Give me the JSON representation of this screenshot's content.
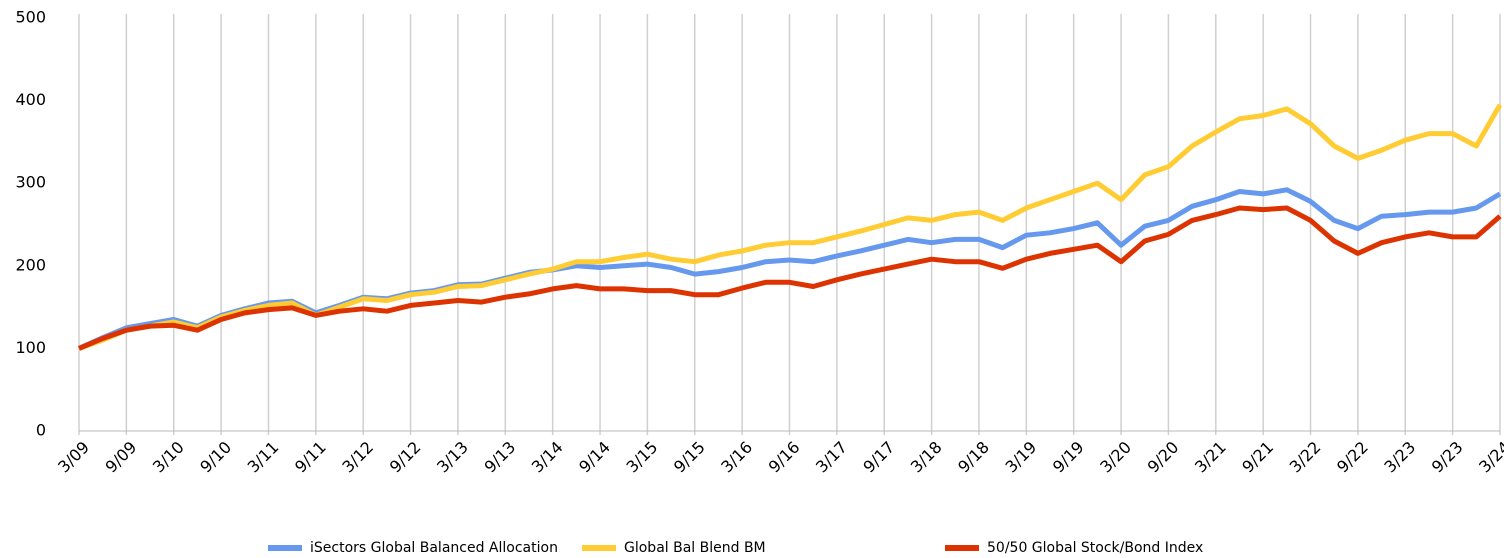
{
  "chart_data": {
    "type": "line",
    "categories": [
      "3/09",
      null,
      "9/09",
      null,
      "3/10",
      null,
      "9/10",
      null,
      "3/11",
      null,
      "9/11",
      null,
      "3/12",
      null,
      "9/12",
      null,
      "3/13",
      null,
      "9/13",
      null,
      "3/14",
      null,
      "9/14",
      null,
      "3/15",
      null,
      "9/15",
      null,
      "3/16",
      null,
      "9/16",
      null,
      "3/17",
      null,
      "9/17",
      null,
      "3/18",
      null,
      "9/18",
      null,
      "3/19",
      null,
      "9/19",
      null,
      "3/20",
      null,
      "9/20",
      null,
      "3/21",
      null,
      "9/21",
      null,
      "3/22",
      null,
      "9/22",
      null,
      "3/23",
      null,
      "9/23",
      null,
      "3/24"
    ],
    "series": [
      {
        "name": "iSectors Global Balanced Allocation",
        "color": "#6699ee",
        "values": [
          100,
          113,
          125,
          130,
          135,
          127,
          140,
          148,
          155,
          157,
          143,
          152,
          162,
          160,
          167,
          170,
          177,
          178,
          185,
          192,
          195,
          200,
          198,
          200,
          202,
          198,
          190,
          193,
          198,
          205,
          207,
          205,
          212,
          218,
          225,
          232,
          228,
          232,
          232,
          222,
          237,
          240,
          245,
          252,
          225,
          248,
          255,
          272,
          280,
          290,
          287,
          292,
          278,
          255,
          245,
          260,
          262,
          265,
          265,
          270,
          287
        ]
      },
      {
        "name": "Global Bal Blend BM",
        "color": "#ffcc33",
        "values": [
          100,
          110,
          122,
          127,
          132,
          125,
          138,
          146,
          152,
          155,
          140,
          150,
          160,
          158,
          165,
          168,
          175,
          176,
          183,
          190,
          196,
          205,
          205,
          210,
          214,
          208,
          205,
          213,
          218,
          225,
          228,
          228,
          235,
          242,
          250,
          258,
          255,
          262,
          265,
          255,
          270,
          280,
          290,
          300,
          280,
          310,
          320,
          345,
          362,
          378,
          382,
          390,
          372,
          345,
          330,
          340,
          352,
          360,
          360,
          345,
          395
        ]
      },
      {
        "name": "50/50 Global Stock/Bond Index",
        "color": "#dd3300",
        "values": [
          100,
          112,
          122,
          127,
          128,
          122,
          135,
          143,
          147,
          149,
          140,
          145,
          148,
          145,
          152,
          155,
          158,
          156,
          162,
          166,
          172,
          176,
          172,
          172,
          170,
          170,
          165,
          165,
          173,
          180,
          180,
          175,
          183,
          190,
          196,
          202,
          208,
          205,
          205,
          197,
          208,
          215,
          220,
          225,
          205,
          230,
          238,
          255,
          262,
          270,
          268,
          270,
          255,
          230,
          215,
          228,
          235,
          240,
          235,
          235,
          260
        ]
      }
    ],
    "ylim": [
      0,
      500
    ],
    "yticks": [
      0,
      100,
      200,
      300,
      400,
      500
    ],
    "grid": true
  }
}
